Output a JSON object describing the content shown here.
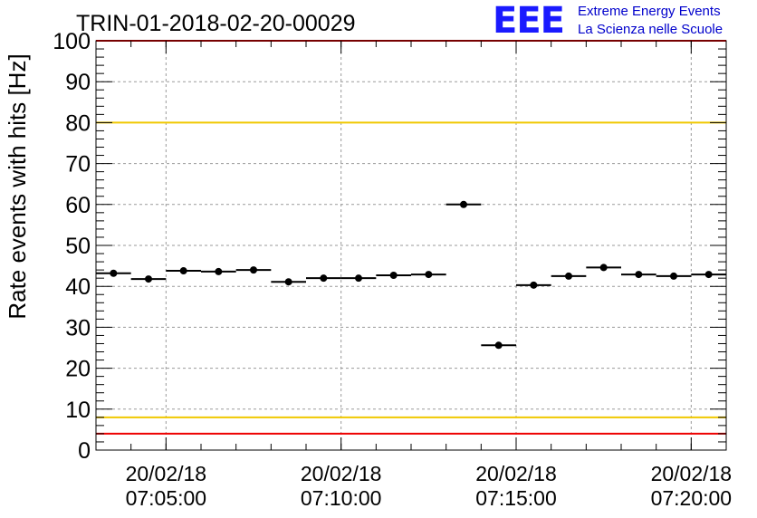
{
  "chart_data": {
    "type": "scatter",
    "title": "TRIN-01-2018-02-20-00029",
    "ylabel": "Rate events with hits [Hz]",
    "xlabel": "",
    "ylim": [
      0,
      100
    ],
    "yticks": [
      0,
      10,
      20,
      30,
      40,
      50,
      60,
      70,
      80,
      90,
      100
    ],
    "xlim": [
      "2018-02-20 07:03:00",
      "2018-02-20 07:21:00"
    ],
    "xticks": [
      {
        "time": "2018-02-20 07:05:00",
        "date_label": "20/02/18",
        "time_label": "07:05:00"
      },
      {
        "time": "2018-02-20 07:10:00",
        "date_label": "20/02/18",
        "time_label": "07:10:00"
      },
      {
        "time": "2018-02-20 07:15:00",
        "date_label": "20/02/18",
        "time_label": "07:15:00"
      },
      {
        "time": "2018-02-20 07:20:00",
        "date_label": "20/02/18",
        "time_label": "07:20:00"
      }
    ],
    "grid": true,
    "series": [
      {
        "x": [
          "2018-02-20 07:03:30",
          "2018-02-20 07:04:30",
          "2018-02-20 07:05:30",
          "2018-02-20 07:06:30",
          "2018-02-20 07:07:30",
          "2018-02-20 07:08:30",
          "2018-02-20 07:09:30",
          "2018-02-20 07:10:30",
          "2018-02-20 07:11:30",
          "2018-02-20 07:12:30",
          "2018-02-20 07:13:30",
          "2018-02-20 07:14:30",
          "2018-02-20 07:15:30",
          "2018-02-20 07:16:30",
          "2018-02-20 07:17:30",
          "2018-02-20 07:18:30",
          "2018-02-20 07:19:30",
          "2018-02-20 07:20:30"
        ],
        "y": [
          43.2,
          41.8,
          43.8,
          43.6,
          44.0,
          41.1,
          42.0,
          42.0,
          42.7,
          42.9,
          60.0,
          25.6,
          40.3,
          42.5,
          44.6,
          42.9,
          42.5,
          42.9
        ],
        "x_half_width_seconds": 30,
        "color": "#000000"
      }
    ],
    "reference_lines": [
      {
        "y": 80,
        "color": "#f0c800"
      },
      {
        "y": 8,
        "color": "#f0c800"
      },
      {
        "y": 4,
        "color": "#ee0000"
      },
      {
        "y": 100,
        "color": "#ee0000"
      }
    ]
  },
  "logo": {
    "mark": "EEE",
    "line1": "Extreme Energy Events",
    "line2": "La Scienza nelle Scuole",
    "color": "#0000cc"
  }
}
